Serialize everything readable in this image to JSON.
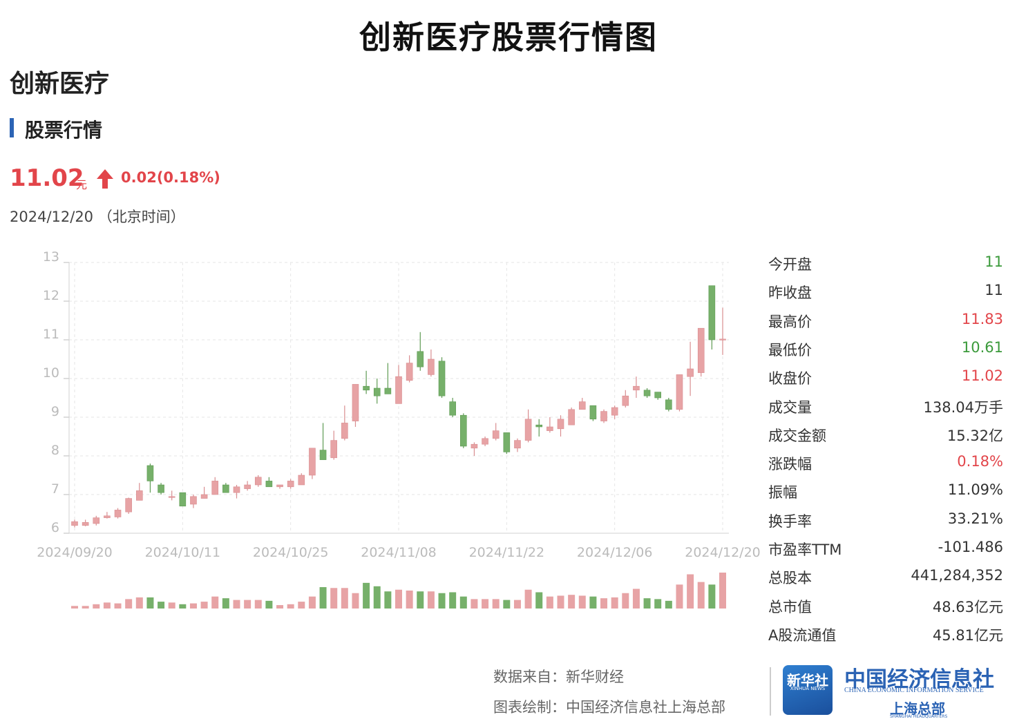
{
  "header": {
    "title": "创新医疗股票行情图",
    "stock_name": "创新医疗",
    "section_label": "股票行情"
  },
  "quote": {
    "price": "11.02",
    "unit": "元",
    "change": "0.02(0.18%)",
    "date": "2024/12/20  （北京时间）"
  },
  "colors": {
    "up": "#e7a3a5",
    "down": "#76b06a",
    "red_text": "#e2454a",
    "green_text": "#3b9a3b",
    "accent": "#2c64b5"
  },
  "stats": [
    {
      "label": "今开盘",
      "value": "11",
      "color": "green"
    },
    {
      "label": "昨收盘",
      "value": "11",
      "color": "neutral"
    },
    {
      "label": "最高价",
      "value": "11.83",
      "color": "red"
    },
    {
      "label": "最低价",
      "value": "10.61",
      "color": "green"
    },
    {
      "label": "收盘价",
      "value": "11.02",
      "color": "red"
    },
    {
      "label": "成交量",
      "value": "138.04万手",
      "color": "neutral"
    },
    {
      "label": "成交金额",
      "value": "15.32亿",
      "color": "neutral"
    },
    {
      "label": "涨跌幅",
      "value": "0.18%",
      "color": "red"
    },
    {
      "label": "振幅",
      "value": "11.09%",
      "color": "neutral"
    },
    {
      "label": "换手率",
      "value": "33.21%",
      "color": "neutral"
    },
    {
      "label": "市盈率TTM",
      "value": "-101.486",
      "color": "neutral"
    },
    {
      "label": "总股本",
      "value": "441,284,352",
      "color": "neutral"
    },
    {
      "label": "总市值",
      "value": "48.63亿元",
      "color": "neutral"
    },
    {
      "label": "A股流通值",
      "value": "45.81亿元",
      "color": "neutral"
    }
  ],
  "footer": {
    "source": "数据来自：新华财经",
    "maker": "图表绘制：中国经济信息社上海总部",
    "xinhua_logo_text": "新华社",
    "xinhua_logo_sub": "XINHUA NEWS",
    "ceis_name": "中国经济信息社",
    "ceis_en": "CHINA ECONOMIC INFORMATION SERVICE",
    "ceis_branch": "上海总部",
    "ceis_branch_en": "SHANGHAI HEADQUARTERS"
  },
  "chart_data": {
    "type": "candlestick",
    "ylim": [
      6,
      13
    ],
    "yticks": [
      6,
      7,
      8,
      9,
      10,
      11,
      12,
      13
    ],
    "xtick_labels": [
      "2024/09/20",
      "2024/10/11",
      "2024/10/25",
      "2024/11/08",
      "2024/11/22",
      "2024/12/06",
      "2024/12/20"
    ],
    "xtick_indices": [
      0,
      10,
      20,
      30,
      40,
      50,
      60
    ],
    "grid": true,
    "candles": [
      {
        "o": 6.2,
        "c": 6.3,
        "h": 6.35,
        "l": 6.15
      },
      {
        "o": 6.2,
        "c": 6.28,
        "h": 6.35,
        "l": 6.18
      },
      {
        "o": 6.25,
        "c": 6.4,
        "h": 6.45,
        "l": 6.2
      },
      {
        "o": 6.4,
        "c": 6.45,
        "h": 6.55,
        "l": 6.38
      },
      {
        "o": 6.42,
        "c": 6.6,
        "h": 6.65,
        "l": 6.38
      },
      {
        "o": 6.55,
        "c": 6.9,
        "h": 6.92,
        "l": 6.5
      },
      {
        "o": 6.85,
        "c": 7.1,
        "h": 7.3,
        "l": 6.85
      },
      {
        "o": 7.75,
        "c": 7.35,
        "h": 7.8,
        "l": 7.05
      },
      {
        "o": 7.25,
        "c": 7.05,
        "h": 7.3,
        "l": 7.0
      },
      {
        "o": 6.95,
        "c": 6.95,
        "h": 7.1,
        "l": 6.85
      },
      {
        "o": 7.05,
        "c": 6.7,
        "h": 7.05,
        "l": 6.7
      },
      {
        "o": 6.75,
        "c": 6.95,
        "h": 7.0,
        "l": 6.65
      },
      {
        "o": 6.9,
        "c": 7.0,
        "h": 7.2,
        "l": 6.9
      },
      {
        "o": 7.0,
        "c": 7.35,
        "h": 7.45,
        "l": 7.0
      },
      {
        "o": 7.25,
        "c": 7.05,
        "h": 7.3,
        "l": 7.05
      },
      {
        "o": 7.05,
        "c": 7.2,
        "h": 7.25,
        "l": 6.9
      },
      {
        "o": 7.15,
        "c": 7.25,
        "h": 7.35,
        "l": 7.1
      },
      {
        "o": 7.25,
        "c": 7.45,
        "h": 7.5,
        "l": 7.2
      },
      {
        "o": 7.35,
        "c": 7.2,
        "h": 7.45,
        "l": 7.2
      },
      {
        "o": 7.2,
        "c": 7.25,
        "h": 7.25,
        "l": 7.15
      },
      {
        "o": 7.2,
        "c": 7.35,
        "h": 7.4,
        "l": 7.15
      },
      {
        "o": 7.25,
        "c": 7.5,
        "h": 7.55,
        "l": 7.25
      },
      {
        "o": 7.5,
        "c": 8.2,
        "h": 8.2,
        "l": 7.4
      },
      {
        "o": 8.15,
        "c": 7.9,
        "h": 8.85,
        "l": 7.9
      },
      {
        "o": 7.95,
        "c": 8.4,
        "h": 8.65,
        "l": 7.9
      },
      {
        "o": 8.45,
        "c": 8.85,
        "h": 9.3,
        "l": 8.4
      },
      {
        "o": 8.9,
        "c": 9.85,
        "h": 9.85,
        "l": 8.75
      },
      {
        "o": 9.8,
        "c": 9.7,
        "h": 10.2,
        "l": 9.6
      },
      {
        "o": 9.75,
        "c": 9.55,
        "h": 10.0,
        "l": 9.35
      },
      {
        "o": 9.75,
        "c": 9.6,
        "h": 10.4,
        "l": 9.6
      },
      {
        "o": 9.35,
        "c": 10.05,
        "h": 10.35,
        "l": 9.35
      },
      {
        "o": 9.95,
        "c": 10.4,
        "h": 10.6,
        "l": 9.9
      },
      {
        "o": 10.7,
        "c": 10.3,
        "h": 11.2,
        "l": 10.2
      },
      {
        "o": 10.1,
        "c": 10.5,
        "h": 10.75,
        "l": 10.05
      },
      {
        "o": 10.45,
        "c": 9.55,
        "h": 10.55,
        "l": 9.5
      },
      {
        "o": 9.4,
        "c": 9.05,
        "h": 9.5,
        "l": 9.0
      },
      {
        "o": 9.05,
        "c": 8.25,
        "h": 9.1,
        "l": 8.2
      },
      {
        "o": 8.2,
        "c": 8.3,
        "h": 8.35,
        "l": 8.0
      },
      {
        "o": 8.3,
        "c": 8.45,
        "h": 8.5,
        "l": 8.25
      },
      {
        "o": 8.45,
        "c": 8.65,
        "h": 8.85,
        "l": 8.4
      },
      {
        "o": 8.6,
        "c": 8.1,
        "h": 8.6,
        "l": 8.05
      },
      {
        "o": 8.2,
        "c": 8.4,
        "h": 8.45,
        "l": 8.1
      },
      {
        "o": 8.4,
        "c": 8.95,
        "h": 9.2,
        "l": 8.35
      },
      {
        "o": 8.8,
        "c": 8.75,
        "h": 8.95,
        "l": 8.5
      },
      {
        "o": 8.65,
        "c": 8.75,
        "h": 9.0,
        "l": 8.6
      },
      {
        "o": 8.7,
        "c": 8.95,
        "h": 9.05,
        "l": 8.5
      },
      {
        "o": 8.8,
        "c": 9.2,
        "h": 9.25,
        "l": 8.8
      },
      {
        "o": 9.2,
        "c": 9.4,
        "h": 9.5,
        "l": 9.2
      },
      {
        "o": 9.3,
        "c": 8.95,
        "h": 9.3,
        "l": 8.9
      },
      {
        "o": 8.9,
        "c": 9.15,
        "h": 9.2,
        "l": 8.85
      },
      {
        "o": 9.05,
        "c": 9.25,
        "h": 9.3,
        "l": 8.95
      },
      {
        "o": 9.3,
        "c": 9.55,
        "h": 9.7,
        "l": 9.25
      },
      {
        "o": 9.7,
        "c": 9.8,
        "h": 10.05,
        "l": 9.5
      },
      {
        "o": 9.7,
        "c": 9.55,
        "h": 9.75,
        "l": 9.5
      },
      {
        "o": 9.65,
        "c": 9.5,
        "h": 9.65,
        "l": 9.45
      },
      {
        "o": 9.45,
        "c": 9.2,
        "h": 9.5,
        "l": 9.15
      },
      {
        "o": 9.2,
        "c": 10.1,
        "h": 10.1,
        "l": 9.15
      },
      {
        "o": 10.05,
        "c": 10.25,
        "h": 10.95,
        "l": 9.55
      },
      {
        "o": 10.15,
        "c": 11.3,
        "h": 11.3,
        "l": 10.05
      },
      {
        "o": 12.4,
        "c": 11.0,
        "h": 12.4,
        "l": 10.75
      },
      {
        "o": 11.0,
        "c": 11.02,
        "h": 11.83,
        "l": 10.61
      }
    ],
    "volumes": [
      3,
      3,
      5,
      7,
      6,
      11,
      13,
      13,
      8,
      7,
      5,
      6,
      8,
      14,
      12,
      10,
      10,
      10,
      9,
      4,
      5,
      8,
      14,
      25,
      24,
      24,
      18,
      30,
      26,
      20,
      22,
      21,
      20,
      20,
      18,
      19,
      14,
      11,
      11,
      11,
      10,
      10,
      22,
      19,
      14,
      15,
      16,
      15,
      14,
      12,
      13,
      18,
      23,
      12,
      11,
      9,
      28,
      40,
      31,
      28,
      42
    ]
  }
}
